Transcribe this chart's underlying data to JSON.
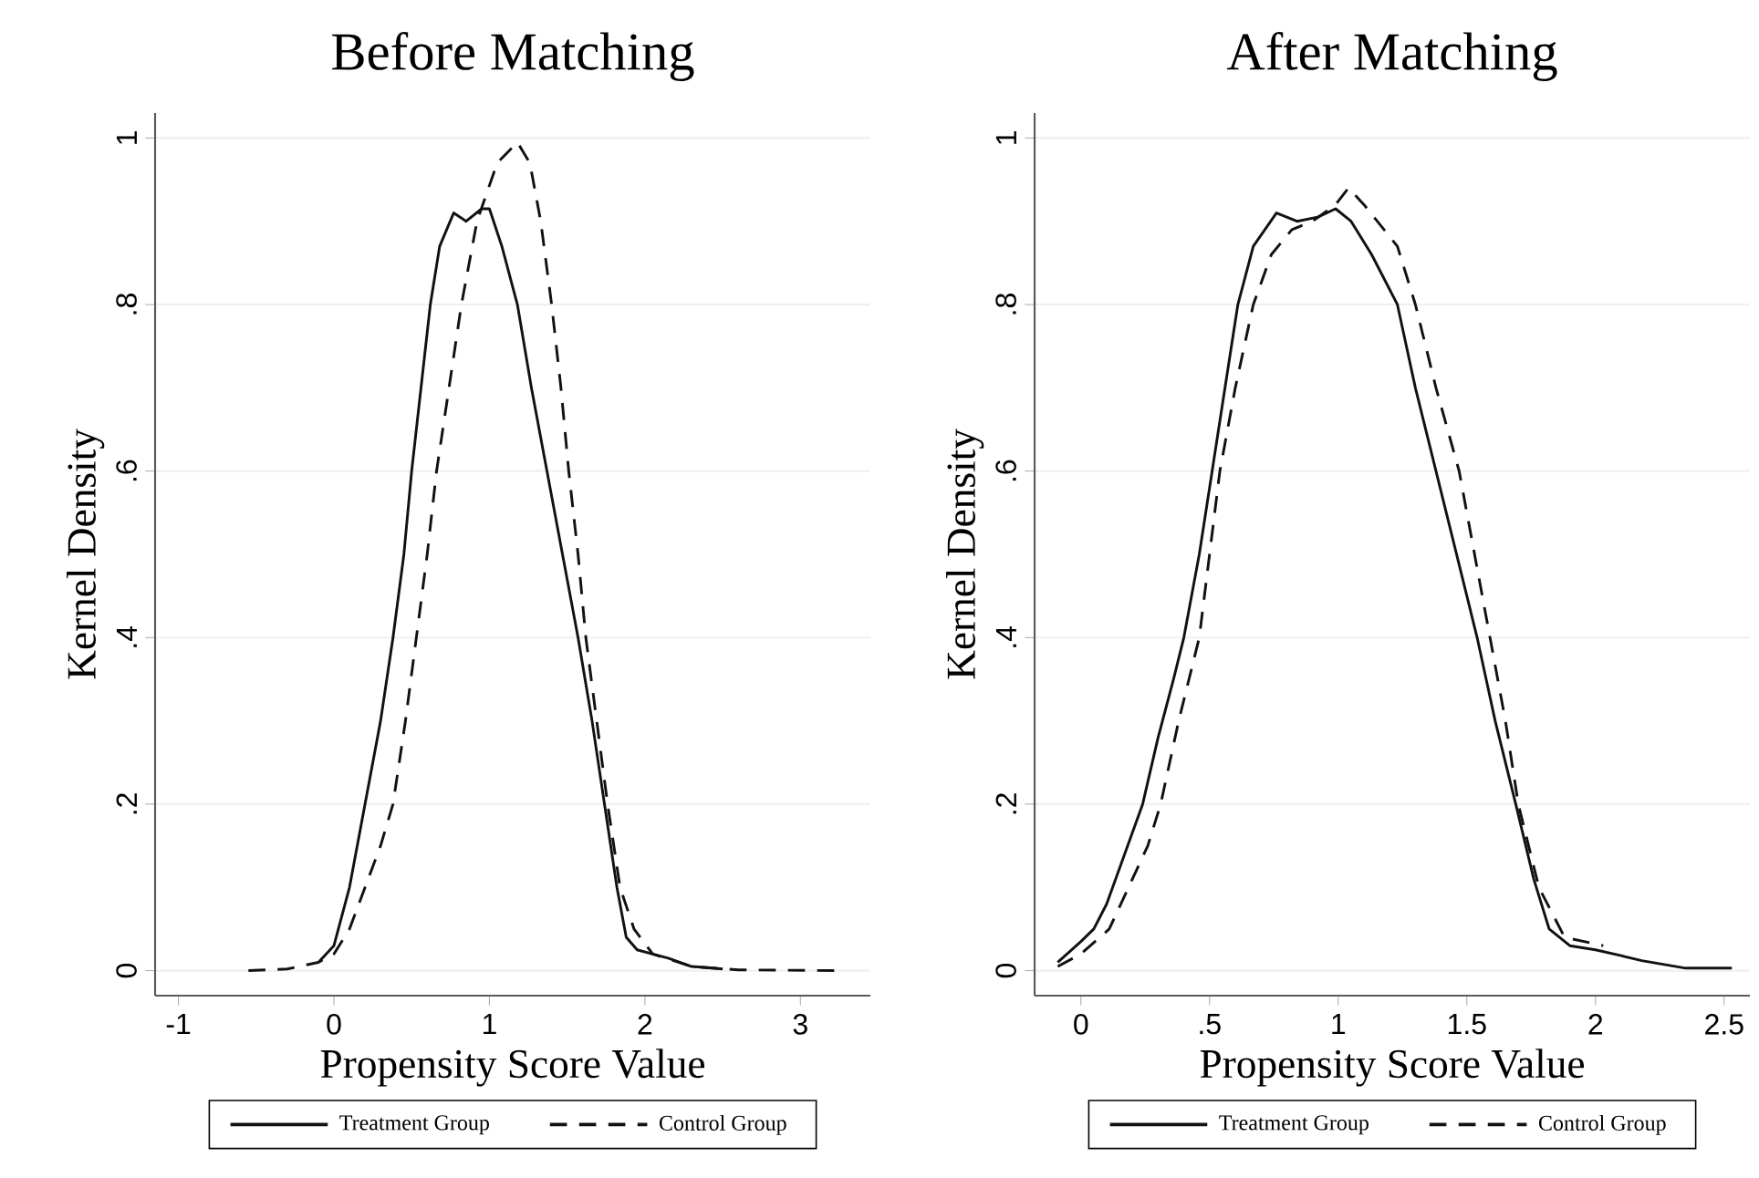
{
  "chart_data": [
    {
      "type": "line",
      "title": "Before Matching",
      "xlabel": "Propensity Score Value",
      "ylabel": "Kernel Density",
      "xlim": [
        -1.15,
        3.45
      ],
      "ylim": [
        -0.03,
        1.03
      ],
      "xticks": [
        -1,
        0,
        1,
        2,
        3
      ],
      "yticks": [
        0,
        {
          "value": 0.2,
          "label": ".2"
        },
        {
          "value": 0.4,
          "label": ".4"
        },
        {
          "value": 0.6,
          "label": ".6"
        },
        {
          "value": 0.8,
          "label": ".8"
        },
        1
      ],
      "grid": "y",
      "legend": "bottom",
      "series": [
        {
          "name": "Treatment Group",
          "color": "#111111",
          "line_style": "solid",
          "x": [
            -0.1,
            0,
            0.1,
            0.2,
            0.3,
            0.38,
            0.45,
            0.5,
            0.56,
            0.62,
            0.68,
            0.77,
            0.85,
            0.95,
            1.0,
            1.08,
            1.18,
            1.27,
            1.37,
            1.47,
            1.57,
            1.66,
            1.74,
            1.82,
            1.88,
            1.95,
            2.05,
            2.15,
            2.3,
            2.5
          ],
          "values": [
            0.01,
            0.03,
            0.1,
            0.2,
            0.3,
            0.4,
            0.5,
            0.6,
            0.7,
            0.8,
            0.87,
            0.91,
            0.9,
            0.915,
            0.915,
            0.87,
            0.8,
            0.7,
            0.6,
            0.5,
            0.4,
            0.3,
            0.2,
            0.1,
            0.04,
            0.025,
            0.02,
            0.015,
            0.005,
            0.002
          ]
        },
        {
          "name": "Control Group",
          "color": "#111111",
          "line_style": "dashed",
          "x": [
            -0.55,
            -0.3,
            -0.1,
            0,
            0.1,
            0.2,
            0.3,
            0.38,
            0.46,
            0.53,
            0.6,
            0.66,
            0.74,
            0.82,
            0.92,
            1.05,
            1.18,
            1.26,
            1.33,
            1.4,
            1.46,
            1.51,
            1.57,
            1.62,
            1.69,
            1.76,
            1.84,
            1.93,
            2.05,
            2.3,
            2.6,
            3.25
          ],
          "values": [
            0,
            0.002,
            0.01,
            0.02,
            0.05,
            0.1,
            0.15,
            0.2,
            0.3,
            0.4,
            0.5,
            0.6,
            0.7,
            0.8,
            0.9,
            0.97,
            0.995,
            0.97,
            0.9,
            0.8,
            0.7,
            0.6,
            0.5,
            0.4,
            0.3,
            0.2,
            0.1,
            0.05,
            0.02,
            0.005,
            0.001,
            0
          ]
        }
      ]
    },
    {
      "type": "line",
      "title": "After Matching",
      "xlabel": "Propensity Score Value",
      "ylabel": "Kernel Density",
      "xlim": [
        -0.18,
        2.6
      ],
      "ylim": [
        -0.03,
        1.03
      ],
      "xticks": [
        0,
        {
          "value": 0.5,
          "label": ".5"
        },
        1,
        1.5,
        2,
        2.5
      ],
      "yticks": [
        0,
        {
          "value": 0.2,
          "label": ".2"
        },
        {
          "value": 0.4,
          "label": ".4"
        },
        {
          "value": 0.6,
          "label": ".6"
        },
        {
          "value": 0.8,
          "label": ".8"
        },
        1
      ],
      "grid": "y",
      "legend": "bottom",
      "series": [
        {
          "name": "Treatment Group",
          "color": "#111111",
          "line_style": "solid",
          "x": [
            -0.09,
            0,
            0.05,
            0.1,
            0.17,
            0.24,
            0.3,
            0.36,
            0.4,
            0.46,
            0.51,
            0.56,
            0.61,
            0.67,
            0.76,
            0.84,
            0.92,
            0.99,
            1.05,
            1.13,
            1.23,
            1.3,
            1.38,
            1.46,
            1.54,
            1.61,
            1.69,
            1.76,
            1.82,
            1.9,
            2.0,
            2.1,
            2.18,
            2.35,
            2.53
          ],
          "values": [
            0.01,
            0.035,
            0.05,
            0.08,
            0.14,
            0.2,
            0.28,
            0.35,
            0.4,
            0.5,
            0.6,
            0.7,
            0.8,
            0.87,
            0.91,
            0.9,
            0.905,
            0.915,
            0.9,
            0.86,
            0.8,
            0.7,
            0.6,
            0.5,
            0.4,
            0.3,
            0.2,
            0.11,
            0.05,
            0.03,
            0.025,
            0.018,
            0.012,
            0.003,
            0.003
          ]
        },
        {
          "name": "Control Group",
          "color": "#111111",
          "line_style": "dashed",
          "x": [
            -0.09,
            0,
            0.11,
            0.2,
            0.26,
            0.31,
            0.38,
            0.46,
            0.5,
            0.54,
            0.6,
            0.67,
            0.74,
            0.82,
            0.9,
            0.99,
            1.04,
            1.1,
            1.23,
            1.3,
            1.38,
            1.47,
            1.53,
            1.59,
            1.65,
            1.7,
            1.78,
            1.88,
            2.03
          ],
          "values": [
            0.005,
            0.02,
            0.05,
            0.11,
            0.15,
            0.2,
            0.3,
            0.4,
            0.5,
            0.6,
            0.7,
            0.8,
            0.86,
            0.89,
            0.9,
            0.92,
            0.94,
            0.92,
            0.87,
            0.8,
            0.7,
            0.6,
            0.5,
            0.4,
            0.3,
            0.2,
            0.1,
            0.04,
            0.03
          ]
        }
      ]
    }
  ]
}
